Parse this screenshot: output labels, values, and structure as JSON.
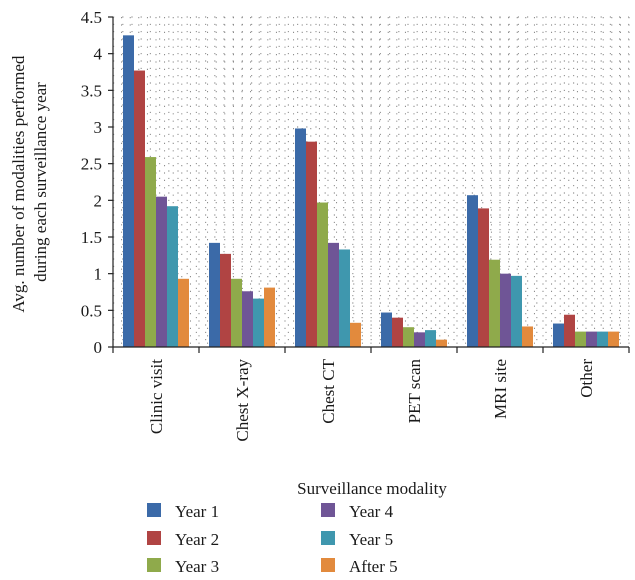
{
  "chart_data": {
    "type": "bar",
    "title": "",
    "xlabel": "Surveillance modality",
    "ylabel_lines": [
      "Avg. number of modalities performed",
      "during each surveillance year"
    ],
    "ylim": [
      0,
      4.5
    ],
    "yticks": [
      "0",
      "0.5",
      "1",
      "1.5",
      "2",
      "2.5",
      "3",
      "3.5",
      "4",
      "4.5"
    ],
    "grid": "dotted",
    "legend_position": "bottom",
    "categories": [
      "Clinic visit",
      "Chest X-ray",
      "Chest CT",
      "PET scan",
      "MRI site",
      "Other"
    ],
    "series": [
      {
        "name": "Year 1",
        "color": "#3b6aa8",
        "values": [
          4.25,
          1.42,
          2.98,
          0.47,
          2.07,
          0.32
        ]
      },
      {
        "name": "Year 2",
        "color": "#b04443",
        "values": [
          3.77,
          1.27,
          2.8,
          0.4,
          1.89,
          0.44
        ]
      },
      {
        "name": "Year 3",
        "color": "#8faa4b",
        "values": [
          2.59,
          0.93,
          1.97,
          0.27,
          1.19,
          0.21
        ]
      },
      {
        "name": "Year 4",
        "color": "#6f5596",
        "values": [
          2.05,
          0.76,
          1.42,
          0.2,
          1.0,
          0.21
        ]
      },
      {
        "name": "Year 5",
        "color": "#3f97ae",
        "values": [
          1.92,
          0.66,
          1.33,
          0.23,
          0.97,
          0.21
        ]
      },
      {
        "name": "After 5",
        "color": "#e28a3d",
        "values": [
          0.93,
          0.81,
          0.33,
          0.1,
          0.28,
          0.21
        ]
      }
    ]
  }
}
